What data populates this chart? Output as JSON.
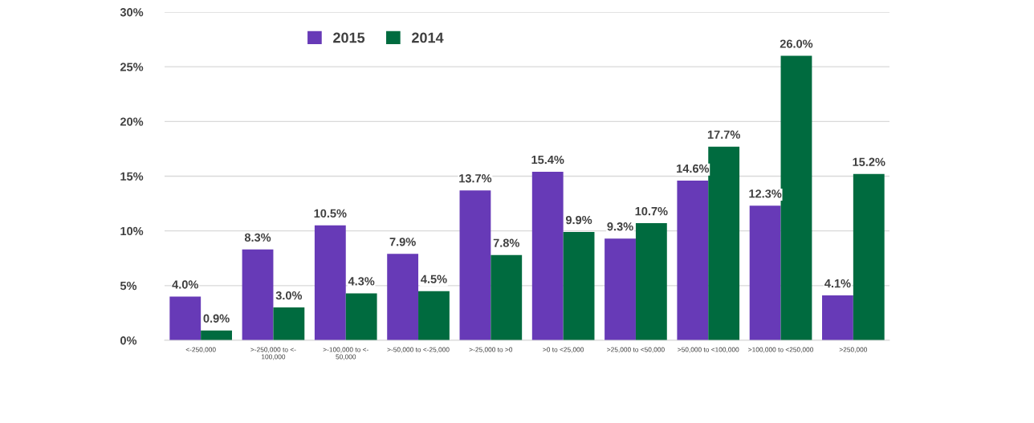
{
  "chart_data": {
    "type": "bar",
    "categories": [
      "<-250,000",
      ">-250,000 to <-\n100,000",
      ">-100,000 to <-\n50,000",
      ">-50,000 to <-25,000",
      ">-25,000 to >0",
      ">0 to <25,000",
      ">25,000 to <50,000",
      ">50,000 to <100,000",
      ">100,000 to <250,000",
      ">250,000"
    ],
    "series": [
      {
        "name": "2015",
        "color": "#673ab7",
        "values": [
          4.0,
          8.3,
          10.5,
          7.9,
          13.7,
          15.4,
          9.3,
          14.6,
          12.3,
          4.1
        ],
        "value_labels": [
          "4.0%",
          "8.3%",
          "10.5%",
          "7.9%",
          "13.7%",
          "15.4%",
          "9.3%",
          "14.6%",
          "12.3%",
          "4.1%"
        ]
      },
      {
        "name": "2014",
        "color": "#006b3f",
        "values": [
          0.9,
          3.0,
          4.3,
          4.5,
          7.8,
          9.9,
          10.7,
          17.7,
          26.0,
          15.2
        ],
        "value_labels": [
          "0.9%",
          "3.0%",
          "4.3%",
          "4.5%",
          "7.8%",
          "9.9%",
          "10.7%",
          "17.7%",
          "26.0%",
          "15.2%"
        ]
      }
    ],
    "ylim": [
      0,
      30
    ],
    "yticks": [
      {
        "value": 0,
        "label": "0%"
      },
      {
        "value": 5,
        "label": "5%"
      },
      {
        "value": 10,
        "label": "10%"
      },
      {
        "value": 15,
        "label": "15%"
      },
      {
        "value": 20,
        "label": "20%"
      },
      {
        "value": 25,
        "label": "25%"
      },
      {
        "value": 30,
        "label": "30%"
      }
    ],
    "grid": "y",
    "legend": "top left"
  }
}
